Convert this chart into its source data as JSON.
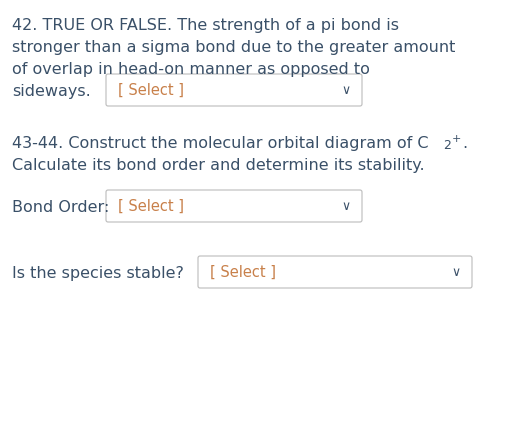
{
  "background_color": "#ffffff",
  "text_color": "#3a5068",
  "select_color": "#c8804a",
  "arrow_color": "#3a5068",
  "line1": "42. TRUE OR FALSE. The strength of a pi bond is",
  "line2": "stronger than a sigma bond due to the greater amount",
  "line3": "of overlap in head-on manner as opposed to",
  "line4_prefix": "sideways.",
  "select_label": "[ Select ]",
  "line5a": "43-44. Construct the molecular orbital diagram of C",
  "line5b": "2",
  "line5c": "+",
  "line5d": ".",
  "line6": "Calculate its bond order and determine its stability.",
  "bond_order_label": "Bond Order:",
  "stable_label": "Is the species stable?",
  "font_size": 11.5,
  "font_size_select": 10.5,
  "font_size_sub": 9.0,
  "font_size_sup": 8.0,
  "figw": 5.06,
  "figh": 4.26,
  "dpi": 100
}
